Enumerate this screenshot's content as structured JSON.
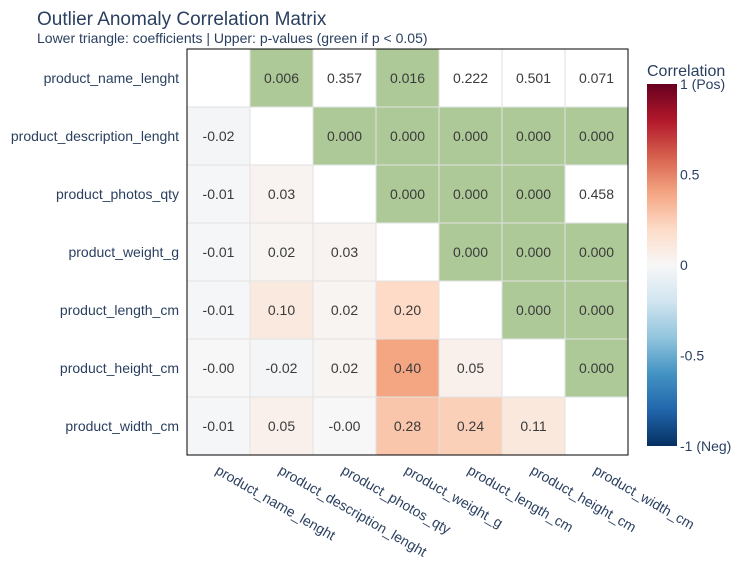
{
  "chart_data": {
    "type": "heatmap",
    "title": "Outlier Anomaly Correlation Matrix",
    "subtitle": "Lower triangle: coefficients | Upper: p-values (green if p < 0.05)",
    "variables": [
      "product_name_lenght",
      "product_description_lenght",
      "product_photos_qty",
      "product_weight_g",
      "product_length_cm",
      "product_height_cm",
      "product_width_cm"
    ],
    "cells": [
      [
        "",
        "0.006",
        "0.357",
        "0.016",
        "0.222",
        "0.501",
        "0.071"
      ],
      [
        "-0.02",
        "",
        "0.000",
        "0.000",
        "0.000",
        "0.000",
        "0.000"
      ],
      [
        "-0.01",
        "0.03",
        "",
        "0.000",
        "0.000",
        "0.000",
        "0.458"
      ],
      [
        "-0.01",
        "0.02",
        "0.03",
        "",
        "0.000",
        "0.000",
        "0.000"
      ],
      [
        "-0.01",
        "0.10",
        "0.02",
        "0.20",
        "",
        "0.000",
        "0.000"
      ],
      [
        "-0.00",
        "-0.02",
        "0.02",
        "0.40",
        "0.05",
        "",
        "0.000"
      ],
      [
        "-0.01",
        "0.05",
        "-0.00",
        "0.28",
        "0.24",
        "0.11",
        ""
      ]
    ],
    "significance_threshold": 0.05,
    "significant_color": "#adc998",
    "colorbar": {
      "title": "Correlation",
      "range": [
        -1,
        1
      ],
      "ticks": [
        {
          "value": 1,
          "label": "1 (Pos)"
        },
        {
          "value": 0.5,
          "label": "0.5"
        },
        {
          "value": 0,
          "label": "0"
        },
        {
          "value": -0.5,
          "label": "-0.5"
        },
        {
          "value": -1,
          "label": "-1 (Neg)"
        }
      ],
      "colorscale": [
        "#053061",
        "#2166ac",
        "#4393c3",
        "#92c5de",
        "#d1e5f0",
        "#f7f7f7",
        "#fddbc7",
        "#f4a582",
        "#d6604d",
        "#b2182b",
        "#67001f"
      ]
    }
  }
}
